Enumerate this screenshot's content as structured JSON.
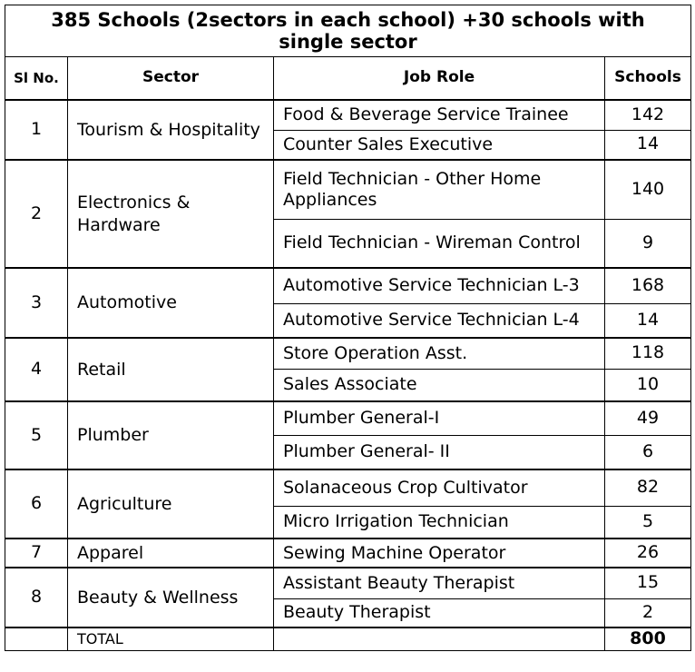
{
  "title": "385 Schools (2sectors in each school) +30 schools with single sector",
  "headers": {
    "sl": "Sl No.",
    "sector": "Sector",
    "job_role": "Job Role",
    "schools": "Schools"
  },
  "rows": [
    {
      "sl": "1",
      "sector": "Tourism & Hospitality",
      "roles": [
        {
          "role": "Food & Beverage Service Trainee",
          "schools": "142"
        },
        {
          "role": "Counter Sales Executive",
          "schools": "14"
        }
      ]
    },
    {
      "sl": "2",
      "sector": "Electronics & Hardware",
      "roles": [
        {
          "role": "Field Technician - Other Home Appliances",
          "schools": "140"
        },
        {
          "role": "Field Technician - Wireman Control",
          "schools": "9"
        }
      ]
    },
    {
      "sl": "3",
      "sector": "Automotive",
      "roles": [
        {
          "role": "Automotive Service Technician L-3",
          "schools": "168"
        },
        {
          "role": "Automotive Service Technician L-4",
          "schools": "14"
        }
      ]
    },
    {
      "sl": "4",
      "sector": "Retail",
      "roles": [
        {
          "role": "Store Operation Asst.",
          "schools": "118"
        },
        {
          "role": "Sales Associate",
          "schools": "10"
        }
      ]
    },
    {
      "sl": "5",
      "sector": "Plumber",
      "roles": [
        {
          "role": "Plumber General-I",
          "schools": "49"
        },
        {
          "role": "Plumber General- II",
          "schools": "6"
        }
      ]
    },
    {
      "sl": "6",
      "sector": "Agriculture",
      "roles": [
        {
          "role": "Solanaceous Crop Cultivator",
          "schools": "82"
        },
        {
          "role": "Micro Irrigation Technician",
          "schools": "5"
        }
      ]
    },
    {
      "sl": "7",
      "sector": "Apparel",
      "roles": [
        {
          "role": "Sewing Machine Operator",
          "schools": "26"
        }
      ]
    },
    {
      "sl": "8",
      "sector": "Beauty & Wellness",
      "roles": [
        {
          "role": "Assistant Beauty Therapist",
          "schools": "15"
        },
        {
          "role": "Beauty Therapist",
          "schools": "2"
        }
      ]
    }
  ],
  "total": {
    "label": "TOTAL",
    "value": "800"
  }
}
